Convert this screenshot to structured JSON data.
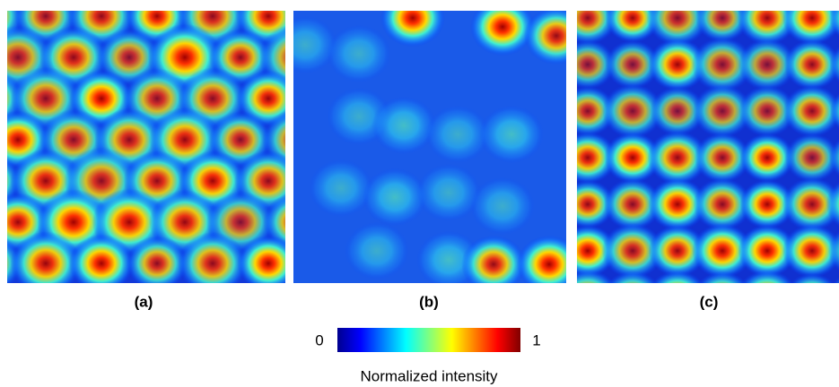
{
  "panels": [
    {
      "label": "(a)"
    },
    {
      "label": "(b)"
    },
    {
      "label": "(c)"
    }
  ],
  "colorbar": {
    "min_label": "0",
    "max_label": "1",
    "title": "Normalized intensity"
  }
}
